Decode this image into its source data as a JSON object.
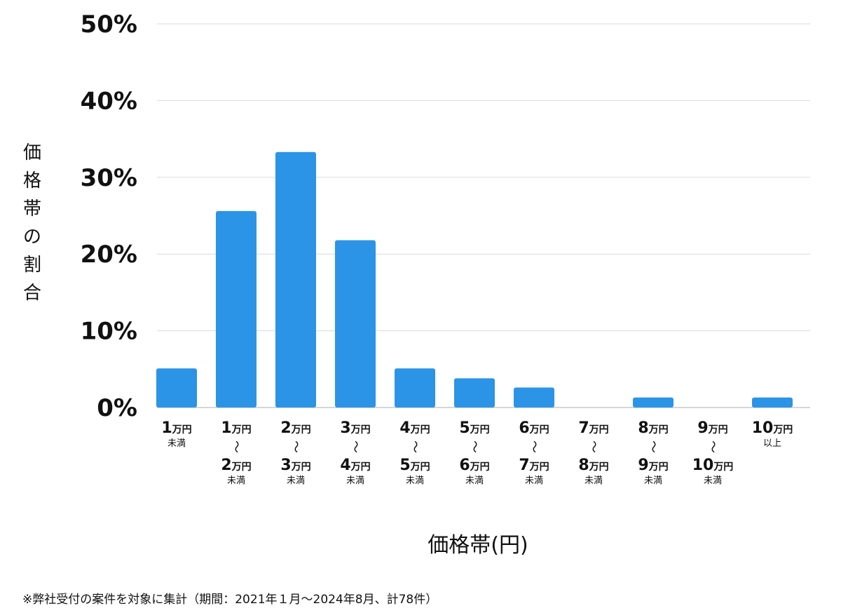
{
  "chart_data": {
    "type": "bar",
    "categories": [
      {
        "lines": [
          {
            "num": "1",
            "unit": "万円"
          }
        ],
        "sub": "未満"
      },
      {
        "lines": [
          {
            "num": "1",
            "unit": "万円"
          },
          {
            "num": "2",
            "unit": "万円"
          }
        ],
        "sub": "未満"
      },
      {
        "lines": [
          {
            "num": "2",
            "unit": "万円"
          },
          {
            "num": "3",
            "unit": "万円"
          }
        ],
        "sub": "未満"
      },
      {
        "lines": [
          {
            "num": "3",
            "unit": "万円"
          },
          {
            "num": "4",
            "unit": "万円"
          }
        ],
        "sub": "未満"
      },
      {
        "lines": [
          {
            "num": "4",
            "unit": "万円"
          },
          {
            "num": "5",
            "unit": "万円"
          }
        ],
        "sub": "未満"
      },
      {
        "lines": [
          {
            "num": "5",
            "unit": "万円"
          },
          {
            "num": "6",
            "unit": "万円"
          }
        ],
        "sub": "未満"
      },
      {
        "lines": [
          {
            "num": "6",
            "unit": "万円"
          },
          {
            "num": "7",
            "unit": "万円"
          }
        ],
        "sub": "未満"
      },
      {
        "lines": [
          {
            "num": "7",
            "unit": "万円"
          },
          {
            "num": "8",
            "unit": "万円"
          }
        ],
        "sub": "未満"
      },
      {
        "lines": [
          {
            "num": "8",
            "unit": "万円"
          },
          {
            "num": "9",
            "unit": "万円"
          }
        ],
        "sub": "未満"
      },
      {
        "lines": [
          {
            "num": "9",
            "unit": "万円"
          },
          {
            "num": "10",
            "unit": "万円"
          }
        ],
        "sub": "未満"
      },
      {
        "lines": [
          {
            "num": "10",
            "unit": "万円"
          }
        ],
        "sub": "以上"
      }
    ],
    "values": [
      5.1,
      25.6,
      33.3,
      21.8,
      5.1,
      3.8,
      2.6,
      0,
      1.3,
      0,
      1.3
    ],
    "range_separator": "〜",
    "ylim": [
      0,
      50
    ],
    "yticks": [
      0,
      10,
      20,
      30,
      40,
      50
    ],
    "ytick_suffix": "%",
    "ylabel": "価格帯の割合",
    "xlabel": "価格帯(円)",
    "grid": true,
    "bar_color": "#2b94e6",
    "grid_color": "#d9d9d9",
    "axis_color": "#bfbfbf"
  },
  "footnote": "※弊社受付の案件を対象に集計（期間：2021年１月〜2024年8月、計78件）"
}
